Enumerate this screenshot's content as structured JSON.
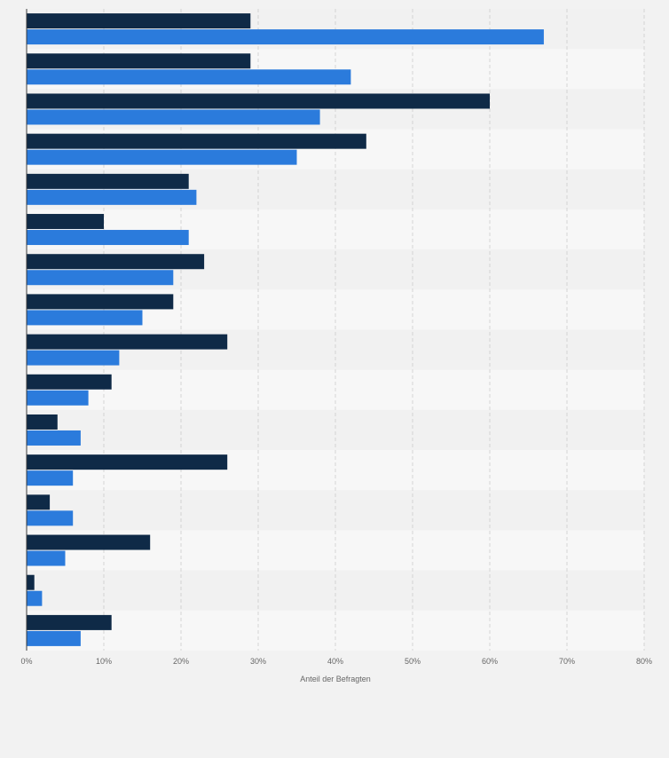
{
  "chart_data": {
    "type": "bar",
    "orientation": "horizontal",
    "categories": [
      "",
      "",
      "",
      "",
      "",
      "",
      "",
      "",
      "",
      "",
      "",
      "",
      "",
      "",
      "",
      ""
    ],
    "series": [
      {
        "color": "#0f2a47",
        "values": [
          29,
          29,
          60,
          44,
          21,
          10,
          23,
          19,
          26,
          11,
          4,
          26,
          3,
          16,
          1,
          11
        ]
      },
      {
        "color": "#2b7bdc",
        "values": [
          67,
          42,
          38,
          35,
          22,
          21,
          19,
          15,
          12,
          8,
          7,
          6,
          6,
          5,
          2,
          7
        ]
      }
    ],
    "x_ticks": [
      "0%",
      "10%",
      "20%",
      "30%",
      "40%",
      "50%",
      "60%",
      "70%",
      "80%"
    ],
    "xlim": [
      0,
      80
    ],
    "xlabel": "Anteil der Befragten",
    "ylabel": "",
    "grid": true,
    "legend": "none"
  }
}
